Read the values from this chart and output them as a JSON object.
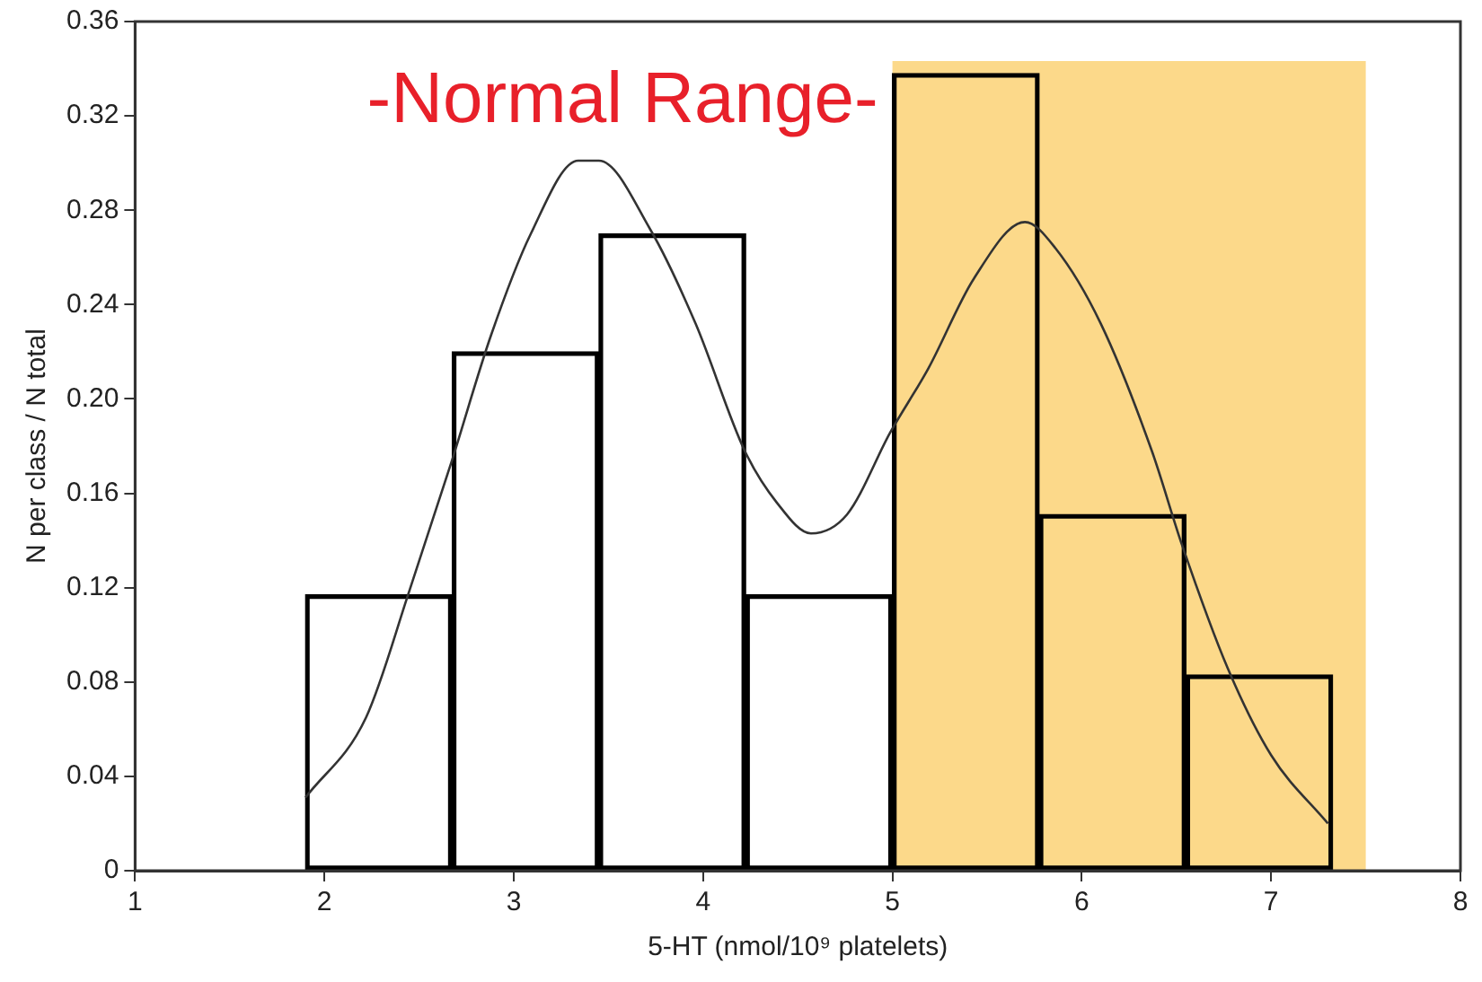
{
  "chart_data": {
    "type": "histogram",
    "xlabel": "5-HT (nmol/10⁹ platelets)",
    "ylabel": "N per class / N total",
    "bins": [
      1.9,
      2.675,
      3.45,
      4.225,
      5.0,
      5.775,
      6.55,
      7.325
    ],
    "values": [
      0.117,
      0.22,
      0.27,
      0.117,
      0.338,
      0.151,
      0.083
    ],
    "color": "#000000",
    "series": [
      {
        "type": "line",
        "color": "#333333",
        "x": [
          1.9,
          2.22,
          2.45,
          2.67,
          2.88,
          3.09,
          3.34,
          3.45,
          3.72,
          3.96,
          4.22,
          4.39,
          4.57,
          4.76,
          4.99,
          5.19,
          5.43,
          5.7,
          5.86,
          6.1,
          6.37,
          6.53,
          6.77,
          7.0,
          7.3
        ],
        "values": [
          0.031,
          0.065,
          0.119,
          0.173,
          0.227,
          0.27,
          0.301,
          0.301,
          0.272,
          0.232,
          0.178,
          0.156,
          0.143,
          0.151,
          0.186,
          0.213,
          0.251,
          0.275,
          0.264,
          0.232,
          0.178,
          0.138,
          0.086,
          0.049,
          0.02
        ]
      }
    ],
    "bands": [
      {
        "axis": "x",
        "from": 5,
        "to": 7.5,
        "label": "-Normal Range-",
        "color": "#fcd98a"
      }
    ],
    "xlim": [
      1,
      8
    ],
    "xticks": [
      1,
      2,
      3,
      4,
      5,
      6,
      7,
      8
    ],
    "ylim": [
      0,
      0.36
    ],
    "yticks": [
      0,
      0.04,
      0.08,
      0.12,
      0.16,
      {
        "value": 0.2,
        "label": "0.20"
      },
      0.24,
      0.28,
      0.32,
      0.36
    ],
    "grid": false,
    "legend": false,
    "marker": "none"
  }
}
